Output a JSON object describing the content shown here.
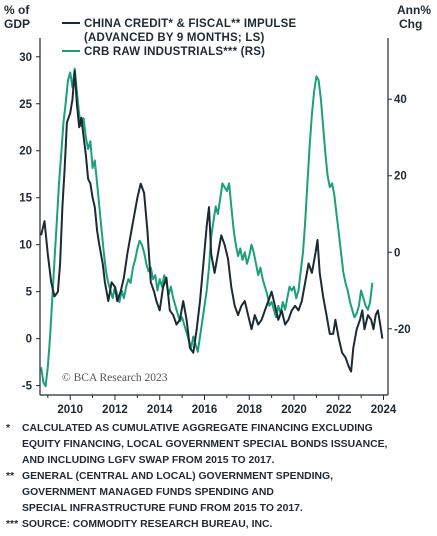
{
  "chart_data": {
    "type": "line",
    "left_axis_label": [
      "% of",
      "GDP"
    ],
    "right_axis_label": [
      "Ann%",
      "Chg"
    ],
    "left_ylim": [
      -6,
      32
    ],
    "right_ylim": [
      -37.3,
      56
    ],
    "xlim": [
      2008.65,
      2024.2
    ],
    "left_ticks": [
      "30",
      "25",
      "20",
      "15",
      "10",
      "5",
      "0",
      "-5"
    ],
    "right_ticks": [
      "40",
      "20",
      "0",
      "-20"
    ],
    "x_ticks": [
      "2010",
      "2012",
      "2014",
      "2016",
      "2018",
      "2020",
      "2022",
      "2024"
    ],
    "series": [
      {
        "name": [
          "CHINA CREDIT* & FISCAL** IMPULSE",
          "(ADVANCED BY 9 MONTHS; LS)"
        ],
        "axis": "left",
        "color": "#1b2a33",
        "points": [
          [
            2008.7,
            11
          ],
          [
            2008.85,
            12.5
          ],
          [
            2009.0,
            9
          ],
          [
            2009.15,
            6
          ],
          [
            2009.3,
            4.5
          ],
          [
            2009.45,
            5
          ],
          [
            2009.55,
            8
          ],
          [
            2009.65,
            14
          ],
          [
            2009.75,
            18
          ],
          [
            2009.85,
            23
          ],
          [
            2010.0,
            24
          ],
          [
            2010.1,
            25.5
          ],
          [
            2010.2,
            28.5
          ],
          [
            2010.3,
            25
          ],
          [
            2010.4,
            22.5
          ],
          [
            2010.5,
            23.5
          ],
          [
            2010.6,
            21.5
          ],
          [
            2010.7,
            19.5
          ],
          [
            2010.8,
            17
          ],
          [
            2010.9,
            16.5
          ],
          [
            2011.0,
            15
          ],
          [
            2011.1,
            14
          ],
          [
            2011.2,
            11.5
          ],
          [
            2011.3,
            10
          ],
          [
            2011.45,
            8
          ],
          [
            2011.55,
            6
          ],
          [
            2011.7,
            4
          ],
          [
            2011.85,
            6
          ],
          [
            2012.0,
            5.5
          ],
          [
            2012.1,
            4
          ],
          [
            2012.25,
            5
          ],
          [
            2012.4,
            6.5
          ],
          [
            2012.55,
            9
          ],
          [
            2012.7,
            11
          ],
          [
            2012.85,
            13
          ],
          [
            2013.0,
            15
          ],
          [
            2013.15,
            16.5
          ],
          [
            2013.3,
            15.5
          ],
          [
            2013.45,
            11.5
          ],
          [
            2013.6,
            6
          ],
          [
            2013.75,
            5
          ],
          [
            2013.85,
            4
          ],
          [
            2014.0,
            3
          ],
          [
            2014.15,
            5.5
          ],
          [
            2014.3,
            6.5
          ],
          [
            2014.45,
            3
          ],
          [
            2014.6,
            2.5
          ],
          [
            2014.75,
            1.5
          ],
          [
            2014.9,
            2
          ],
          [
            2015.05,
            4
          ],
          [
            2015.2,
            2
          ],
          [
            2015.35,
            -1
          ],
          [
            2015.5,
            -1.5
          ],
          [
            2015.65,
            1
          ],
          [
            2015.8,
            4
          ],
          [
            2015.95,
            8
          ],
          [
            2016.1,
            12
          ],
          [
            2016.2,
            14
          ],
          [
            2016.3,
            9
          ],
          [
            2016.45,
            7
          ],
          [
            2016.6,
            9
          ],
          [
            2016.75,
            11
          ],
          [
            2016.9,
            10
          ],
          [
            2017.05,
            8.5
          ],
          [
            2017.2,
            5.5
          ],
          [
            2017.35,
            3.5
          ],
          [
            2017.5,
            2.5
          ],
          [
            2017.65,
            3.5
          ],
          [
            2017.8,
            4
          ],
          [
            2017.95,
            2.5
          ],
          [
            2018.1,
            1
          ],
          [
            2018.25,
            2.5
          ],
          [
            2018.4,
            1.5
          ],
          [
            2018.55,
            2
          ],
          [
            2018.7,
            3
          ],
          [
            2018.85,
            4
          ],
          [
            2019.0,
            5
          ],
          [
            2019.15,
            3.5
          ],
          [
            2019.3,
            2
          ],
          [
            2019.45,
            3
          ],
          [
            2019.6,
            1.5
          ],
          [
            2019.75,
            2
          ],
          [
            2019.9,
            3
          ],
          [
            2020.05,
            3.5
          ],
          [
            2020.2,
            3
          ],
          [
            2020.35,
            4
          ],
          [
            2020.5,
            6
          ],
          [
            2020.65,
            8
          ],
          [
            2020.8,
            7
          ],
          [
            2020.95,
            9
          ],
          [
            2021.05,
            10.5
          ],
          [
            2021.15,
            7
          ],
          [
            2021.3,
            4.5
          ],
          [
            2021.45,
            2.5
          ],
          [
            2021.6,
            0.5
          ],
          [
            2021.75,
            0.5
          ],
          [
            2021.85,
            2
          ],
          [
            2022.0,
            0
          ],
          [
            2022.15,
            -1.5
          ],
          [
            2022.3,
            -2
          ],
          [
            2022.45,
            -3
          ],
          [
            2022.55,
            -3.5
          ],
          [
            2022.65,
            -1
          ],
          [
            2022.8,
            1
          ],
          [
            2022.95,
            2
          ],
          [
            2023.05,
            3
          ],
          [
            2023.15,
            1
          ],
          [
            2023.3,
            2.5
          ],
          [
            2023.45,
            2
          ],
          [
            2023.55,
            1
          ],
          [
            2023.65,
            2.5
          ],
          [
            2023.75,
            3
          ],
          [
            2023.85,
            1.5
          ],
          [
            2023.95,
            0
          ]
        ]
      },
      {
        "name": [
          "CRB RAW INDUSTRIALS*** (RS)"
        ],
        "axis": "right",
        "color": "#1aa07a",
        "points": [
          [
            2008.7,
            -30
          ],
          [
            2008.8,
            -34
          ],
          [
            2008.9,
            -35
          ],
          [
            2009.0,
            -30
          ],
          [
            2009.1,
            -22
          ],
          [
            2009.2,
            -12
          ],
          [
            2009.3,
            -2
          ],
          [
            2009.4,
            8
          ],
          [
            2009.5,
            18
          ],
          [
            2009.6,
            26
          ],
          [
            2009.7,
            34
          ],
          [
            2009.8,
            39
          ],
          [
            2009.9,
            45
          ],
          [
            2010.0,
            47
          ],
          [
            2010.1,
            43
          ],
          [
            2010.2,
            48
          ],
          [
            2010.3,
            42
          ],
          [
            2010.4,
            36
          ],
          [
            2010.5,
            33
          ],
          [
            2010.6,
            35
          ],
          [
            2010.7,
            30
          ],
          [
            2010.8,
            27
          ],
          [
            2010.9,
            29
          ],
          [
            2011.0,
            22
          ],
          [
            2011.1,
            24
          ],
          [
            2011.2,
            18
          ],
          [
            2011.3,
            12
          ],
          [
            2011.4,
            6
          ],
          [
            2011.5,
            0
          ],
          [
            2011.6,
            -5
          ],
          [
            2011.7,
            -8
          ],
          [
            2011.8,
            -10
          ],
          [
            2011.9,
            -12
          ],
          [
            2012.0,
            -9
          ],
          [
            2012.1,
            -11
          ],
          [
            2012.2,
            -13
          ],
          [
            2012.3,
            -10
          ],
          [
            2012.4,
            -12
          ],
          [
            2012.5,
            -9
          ],
          [
            2012.6,
            -7
          ],
          [
            2012.7,
            -8
          ],
          [
            2012.8,
            -4
          ],
          [
            2012.9,
            -2
          ],
          [
            2013.0,
            1
          ],
          [
            2013.1,
            3
          ],
          [
            2013.2,
            2
          ],
          [
            2013.3,
            0
          ],
          [
            2013.4,
            -3
          ],
          [
            2013.5,
            -5
          ],
          [
            2013.6,
            -4
          ],
          [
            2013.7,
            -7
          ],
          [
            2013.8,
            -6
          ],
          [
            2013.9,
            -10
          ],
          [
            2014.0,
            -7
          ],
          [
            2014.1,
            -9
          ],
          [
            2014.2,
            -6
          ],
          [
            2014.3,
            -8
          ],
          [
            2014.4,
            -11
          ],
          [
            2014.5,
            -9
          ],
          [
            2014.6,
            -12
          ],
          [
            2014.7,
            -14
          ],
          [
            2014.8,
            -16
          ],
          [
            2014.9,
            -18
          ],
          [
            2015.0,
            -17
          ],
          [
            2015.1,
            -19
          ],
          [
            2015.2,
            -21
          ],
          [
            2015.3,
            -23
          ],
          [
            2015.4,
            -25
          ],
          [
            2015.5,
            -22
          ],
          [
            2015.6,
            -24
          ],
          [
            2015.7,
            -26
          ],
          [
            2015.8,
            -22
          ],
          [
            2015.9,
            -18
          ],
          [
            2016.0,
            -14
          ],
          [
            2016.1,
            -10
          ],
          [
            2016.2,
            -4
          ],
          [
            2016.3,
            4
          ],
          [
            2016.4,
            8
          ],
          [
            2016.5,
            12
          ],
          [
            2016.6,
            10
          ],
          [
            2016.7,
            14
          ],
          [
            2016.8,
            18
          ],
          [
            2016.9,
            17
          ],
          [
            2017.0,
            16
          ],
          [
            2017.1,
            18
          ],
          [
            2017.2,
            12
          ],
          [
            2017.3,
            6
          ],
          [
            2017.4,
            2
          ],
          [
            2017.5,
            -1
          ],
          [
            2017.6,
            1
          ],
          [
            2017.7,
            -2
          ],
          [
            2017.8,
            0
          ],
          [
            2017.9,
            -3
          ],
          [
            2018.0,
            -1
          ],
          [
            2018.1,
            2
          ],
          [
            2018.2,
            0
          ],
          [
            2018.3,
            -3
          ],
          [
            2018.4,
            -6
          ],
          [
            2018.5,
            -4
          ],
          [
            2018.6,
            -7
          ],
          [
            2018.7,
            -9
          ],
          [
            2018.8,
            -11
          ],
          [
            2018.9,
            -14
          ],
          [
            2019.0,
            -13
          ],
          [
            2019.1,
            -15
          ],
          [
            2019.2,
            -17
          ],
          [
            2019.3,
            -14
          ],
          [
            2019.4,
            -16
          ],
          [
            2019.5,
            -13
          ],
          [
            2019.6,
            -15
          ],
          [
            2019.7,
            -12
          ],
          [
            2019.8,
            -9
          ],
          [
            2019.9,
            -10
          ],
          [
            2020.0,
            -9
          ],
          [
            2020.1,
            -12
          ],
          [
            2020.2,
            -10
          ],
          [
            2020.3,
            -5
          ],
          [
            2020.4,
            0
          ],
          [
            2020.5,
            8
          ],
          [
            2020.6,
            18
          ],
          [
            2020.7,
            28
          ],
          [
            2020.8,
            36
          ],
          [
            2020.9,
            42
          ],
          [
            2021.0,
            46
          ],
          [
            2021.1,
            45
          ],
          [
            2021.2,
            40
          ],
          [
            2021.3,
            33
          ],
          [
            2021.4,
            26
          ],
          [
            2021.5,
            20
          ],
          [
            2021.6,
            17
          ],
          [
            2021.7,
            18
          ],
          [
            2021.8,
            15
          ],
          [
            2021.9,
            10
          ],
          [
            2022.0,
            5
          ],
          [
            2022.1,
            0
          ],
          [
            2022.2,
            -5
          ],
          [
            2022.3,
            -8
          ],
          [
            2022.4,
            -10
          ],
          [
            2022.5,
            -13
          ],
          [
            2022.6,
            -15
          ],
          [
            2022.7,
            -17
          ],
          [
            2022.8,
            -16
          ],
          [
            2022.9,
            -14
          ],
          [
            2023.0,
            -10
          ],
          [
            2023.1,
            -12
          ],
          [
            2023.2,
            -14
          ],
          [
            2023.3,
            -15
          ],
          [
            2023.4,
            -13
          ],
          [
            2023.5,
            -8
          ]
        ]
      }
    ],
    "legend_location": "top-left",
    "grid": false
  },
  "watermark": "© BCA Research 2023",
  "footnotes": [
    {
      "marker": "*",
      "lines": [
        "CALCULATED AS CUMULATIVE AGGREGATE FINANCING EXCLUDING",
        "EQUITY FINANCING, LOCAL GOVERNMENT SPECIAL BONDS ISSUANCE,",
        "AND INCLUDING LGFV SWAP FROM 2015 TO 2017."
      ]
    },
    {
      "marker": "**",
      "lines": [
        "GENERAL (CENTRAL AND LOCAL) GOVERNMENT SPENDING,",
        "GOVERNMENT MANAGED FUNDS SPENDING AND",
        "SPECIAL INFRASTRUCTURE FUND FROM 2015 TO 2017."
      ]
    },
    {
      "marker": "***",
      "lines": [
        "SOURCE: COMMODITY RESEARCH BUREAU, INC."
      ]
    }
  ]
}
